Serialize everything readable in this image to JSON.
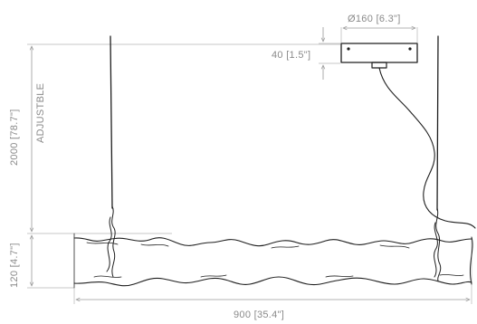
{
  "dimensions": {
    "canopy_diameter": "Ø160 [6.3\"]",
    "canopy_height": "40 [1.5\"]",
    "drop_length": "2000 [78.7\"]",
    "adjustable_note": "ADJUSTBLE",
    "body_height": "120 [4.7\"]",
    "body_length": "900 [35.4\"]"
  },
  "colors": {
    "ink": "#1e1e1e",
    "dimension": "#9a9a9a",
    "text": "#8a8a8a"
  }
}
